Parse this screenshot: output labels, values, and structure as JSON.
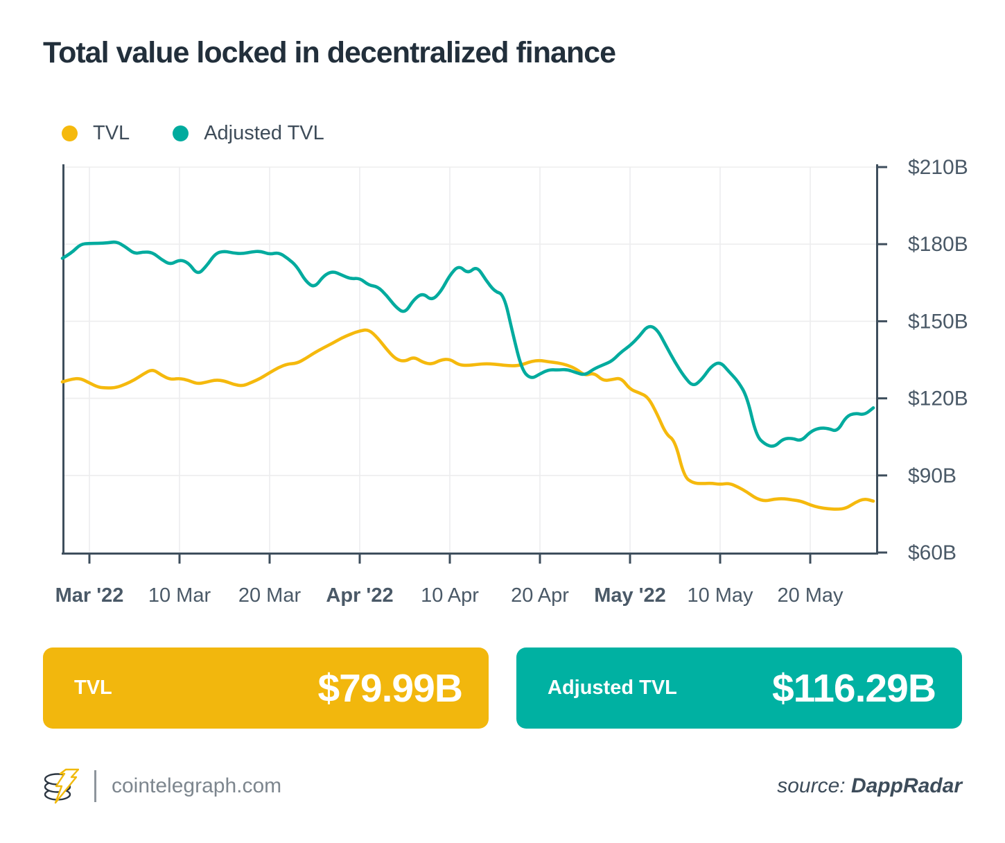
{
  "title": "Total value locked in decentralized finance",
  "legend": {
    "items": [
      {
        "label": "TVL",
        "color": "#f5b90d"
      },
      {
        "label": "Adjusted TVL",
        "color": "#00ab9e"
      }
    ]
  },
  "cards": [
    {
      "label": "TVL",
      "value": "$79.99B",
      "color": "#f2b70d"
    },
    {
      "label": "Adjusted TVL",
      "value": "$116.29B",
      "color": "#00b1a2"
    }
  ],
  "footer": {
    "site": "cointelegraph.com",
    "source_prefix": "source: ",
    "source_name": "DappRadar"
  },
  "chart_data": {
    "type": "line",
    "title": "Total value locked in decentralized finance",
    "ylim": [
      60,
      210
    ],
    "y_ticks": [
      210,
      180,
      150,
      120,
      90,
      60
    ],
    "y_tick_format": "$#B",
    "grid": true,
    "legend_position": "top-left",
    "x_ticks": [
      {
        "day": 3,
        "label": "Mar '22",
        "bold": true
      },
      {
        "day": 13,
        "label": "10 Mar",
        "bold": false
      },
      {
        "day": 23,
        "label": "20 Mar",
        "bold": false
      },
      {
        "day": 33,
        "label": "Apr '22",
        "bold": true
      },
      {
        "day": 43,
        "label": "10 Apr",
        "bold": false
      },
      {
        "day": 53,
        "label": "20 Apr",
        "bold": false
      },
      {
        "day": 63,
        "label": "May '22",
        "bold": true
      },
      {
        "day": 73,
        "label": "10 May",
        "bold": false
      },
      {
        "day": 83,
        "label": "20 May",
        "bold": false
      }
    ],
    "x_note": "daily samples, one per day, late Feb 2022 through May 27 2022 ($B)",
    "series": [
      {
        "name": "TVL",
        "color": "#f5b90d",
        "values": [
          126.4,
          127.5,
          127.8,
          126.0,
          124.3,
          124.0,
          124.2,
          125.5,
          127.2,
          129.5,
          131.4,
          129.0,
          127.3,
          127.8,
          127.0,
          125.6,
          126.3,
          127.2,
          126.8,
          125.4,
          124.8,
          126.2,
          127.8,
          130.0,
          132.0,
          133.4,
          133.6,
          135.5,
          137.8,
          139.7,
          141.5,
          143.5,
          145.0,
          146.3,
          146.8,
          143.5,
          139.0,
          135.2,
          134.3,
          136.2,
          134.0,
          133.2,
          135.0,
          135.3,
          133.0,
          132.8,
          133.2,
          133.5,
          133.3,
          132.9,
          132.6,
          133.0,
          134.4,
          134.8,
          134.2,
          133.8,
          133.0,
          131.5,
          128.8,
          130.0,
          126.8,
          127.3,
          128.0,
          123.5,
          122.2,
          120.5,
          114.0,
          106.0,
          103.5,
          89.5,
          87.0,
          86.8,
          87.0,
          86.5,
          87.0,
          85.5,
          83.5,
          81.0,
          80.0,
          80.8,
          81.0,
          80.5,
          80.0,
          78.5,
          77.5,
          77.0,
          76.8,
          77.2,
          79.5,
          81.0,
          80.0
        ]
      },
      {
        "name": "Adjusted TVL",
        "color": "#00ab9e",
        "values": [
          174.5,
          176.5,
          180.0,
          180.3,
          180.3,
          180.5,
          181.0,
          179.0,
          176.2,
          177.0,
          176.8,
          174.0,
          172.0,
          174.0,
          172.8,
          168.0,
          171.5,
          176.5,
          177.3,
          176.5,
          176.3,
          177.0,
          177.3,
          176.0,
          176.8,
          174.5,
          171.5,
          165.5,
          163.0,
          167.8,
          169.5,
          168.0,
          166.5,
          166.8,
          164.0,
          163.5,
          160.0,
          155.5,
          153.0,
          158.5,
          161.0,
          158.0,
          161.5,
          168.0,
          171.8,
          168.5,
          171.5,
          166.0,
          161.5,
          160.5,
          145.0,
          131.0,
          127.5,
          129.5,
          131.2,
          131.0,
          131.3,
          130.0,
          129.0,
          131.5,
          133.0,
          134.5,
          138.0,
          140.5,
          144.0,
          148.5,
          147.0,
          140.4,
          134.0,
          128.5,
          124.5,
          127.5,
          132.5,
          134.3,
          130.3,
          126.6,
          120.5,
          105.5,
          102.0,
          101.0,
          104.3,
          104.5,
          103.3,
          107.0,
          108.5,
          108.3,
          107.0,
          113.0,
          114.3,
          113.5,
          116.3
        ]
      }
    ]
  }
}
